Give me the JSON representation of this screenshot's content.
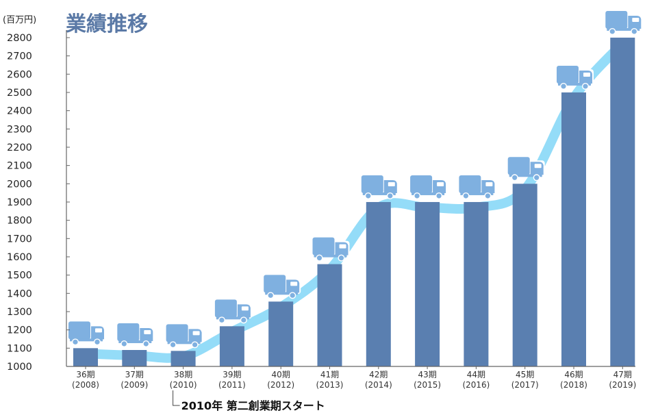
{
  "chart_data": {
    "type": "bar",
    "title": "業績推移",
    "ylabel": "(百万円)",
    "xlabel": "",
    "ylim": [
      1000,
      2850
    ],
    "yticks": [
      1000,
      1100,
      1200,
      1300,
      1400,
      1500,
      1600,
      1700,
      1800,
      1900,
      2000,
      2100,
      2200,
      2300,
      2400,
      2500,
      2600,
      2700,
      2800
    ],
    "categories": [
      {
        "period": "36期",
        "year": "(2008)"
      },
      {
        "period": "37期",
        "year": "(2009)"
      },
      {
        "period": "38期",
        "year": "(2010)"
      },
      {
        "period": "39期",
        "year": "(2011)"
      },
      {
        "period": "40期",
        "year": "(2012)"
      },
      {
        "period": "41期",
        "year": "(2013)"
      },
      {
        "period": "42期",
        "year": "(2014)"
      },
      {
        "period": "43期",
        "year": "(2015)"
      },
      {
        "period": "44期",
        "year": "(2016)"
      },
      {
        "period": "45期",
        "year": "(2017)"
      },
      {
        "period": "46期",
        "year": "(2018)"
      },
      {
        "period": "47期",
        "year": "(2019)"
      }
    ],
    "values": [
      1100,
      1090,
      1085,
      1220,
      1355,
      1560,
      1900,
      1900,
      1900,
      2000,
      2500,
      2800
    ],
    "annotation": {
      "text": "2010年 第二創業期スタート",
      "category_index": 2
    },
    "bar_color": "#5a7fb0",
    "trend_color": "#94dcf8",
    "truck_color": "#7fb0e0",
    "grid": false,
    "legend": "none",
    "marker_icon": "truck-icon"
  }
}
